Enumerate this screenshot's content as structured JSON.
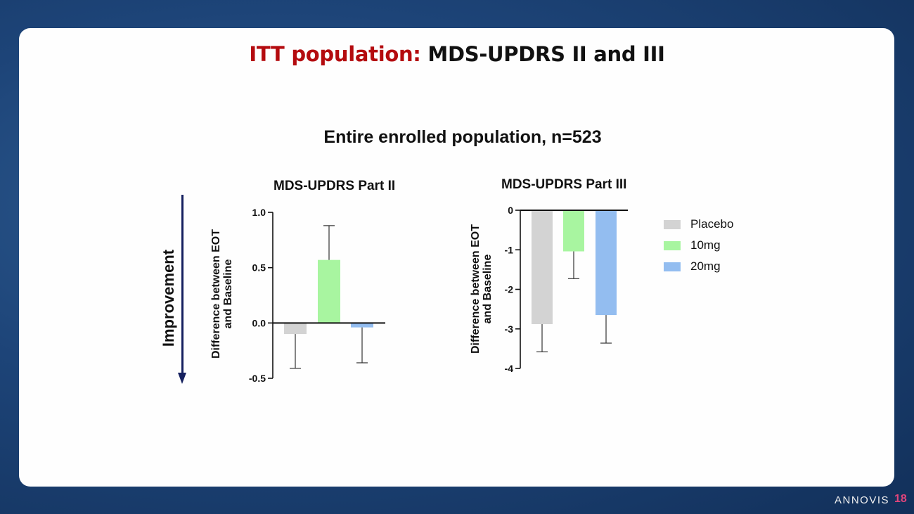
{
  "slide": {
    "title_accent": "ITT population:",
    "title_rest": " MDS-UPDRS II and III",
    "subtitle": "Entire enrolled population, n=523",
    "improvement_label": "Improvement",
    "logo": "ANNOVIS",
    "page_number": "18"
  },
  "colors": {
    "placebo": "#d3d3d3",
    "10mg": "#a8f5a0",
    "20mg": "#93bdf0",
    "accent_red": "#b40b0f",
    "arrow": "#15205f"
  },
  "legend": [
    {
      "label": "Placebo",
      "color": "#d3d3d3"
    },
    {
      "label": "10mg",
      "color": "#a8f5a0"
    },
    {
      "label": "20mg",
      "color": "#93bdf0"
    }
  ],
  "chart_data": [
    {
      "type": "bar",
      "title": "MDS-UPDRS Part II",
      "ylabel_line1": "Difference between EOT",
      "ylabel_line2": "and Baseline",
      "ylim": [
        -0.5,
        1.0
      ],
      "ticks": [
        1.0,
        0.5,
        0.0,
        -0.5
      ],
      "tick_labels": [
        "1.0",
        "0.5",
        "0.0",
        "-0.5"
      ],
      "categories": [
        "Placebo",
        "10mg",
        "20mg"
      ],
      "values": [
        -0.1,
        0.57,
        -0.04
      ],
      "error_ends": [
        -0.41,
        0.88,
        -0.36
      ],
      "colors": [
        "#d3d3d3",
        "#a8f5a0",
        "#93bdf0"
      ]
    },
    {
      "type": "bar",
      "title": "MDS-UPDRS Part III",
      "ylabel_line1": "Difference between EOT",
      "ylabel_line2": "and Baseline",
      "ylim": [
        -4,
        0
      ],
      "ticks": [
        0,
        -1,
        -2,
        -3,
        -4
      ],
      "tick_labels": [
        "0",
        "-1",
        "-2",
        "-3",
        "-4"
      ],
      "categories": [
        "Placebo",
        "10mg",
        "20mg"
      ],
      "values": [
        -2.88,
        -1.04,
        -2.65
      ],
      "error_ends": [
        -3.58,
        -1.73,
        -3.36
      ],
      "colors": [
        "#d3d3d3",
        "#a8f5a0",
        "#93bdf0"
      ]
    }
  ]
}
